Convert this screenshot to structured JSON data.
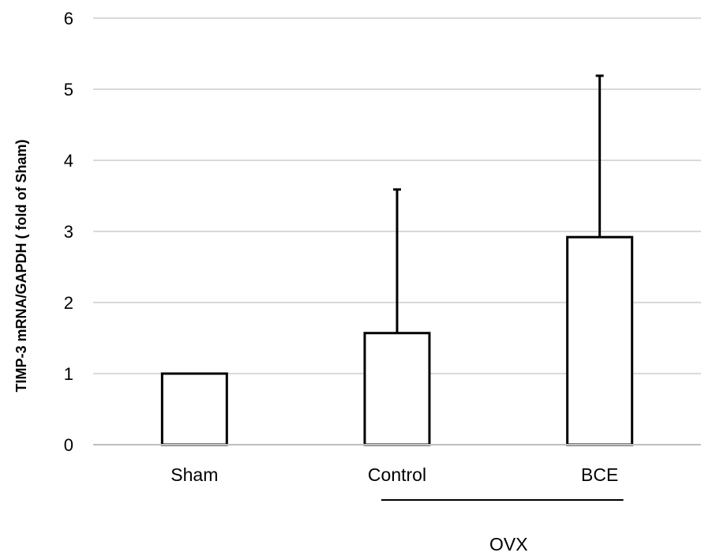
{
  "chart_data": {
    "type": "bar",
    "title": "",
    "xlabel": "",
    "ylabel": "TIMP-3 mRNA/GAPDH ( fold of Sham)",
    "categories": [
      "Sham",
      "Control",
      "BCE"
    ],
    "values": [
      1.0,
      1.57,
      2.92
    ],
    "error_upper": [
      null,
      3.59,
      5.19
    ],
    "ylim": [
      0,
      6
    ],
    "yticks": [
      0,
      1,
      2,
      3,
      4,
      5,
      6
    ],
    "grid": true,
    "group_label": {
      "text": "OVX",
      "spans": [
        "Control",
        "BCE"
      ]
    },
    "colors": {
      "bar_fill": "#ffffff",
      "bar_stroke": "#000000",
      "grid": "#d9d9d9",
      "axis": "#bfbfbf",
      "text": "#000000"
    }
  }
}
